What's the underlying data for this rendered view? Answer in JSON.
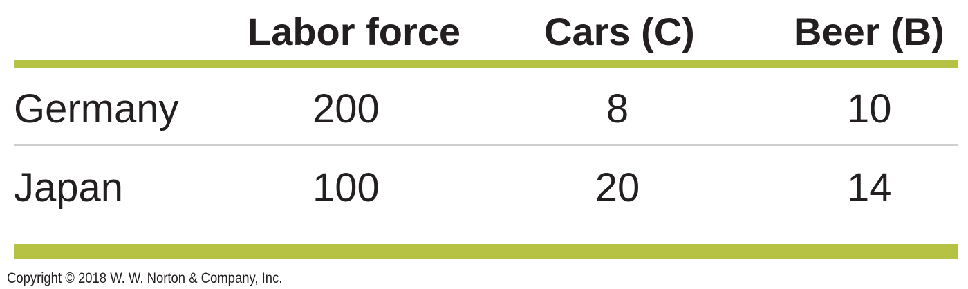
{
  "table": {
    "headers": [
      "Labor force",
      "Cars (C)",
      "Beer (B)"
    ],
    "rows": [
      {
        "country": "Germany",
        "labor_force": "200",
        "cars": "8",
        "beer": "10"
      },
      {
        "country": "Japan",
        "labor_force": "100",
        "cars": "20",
        "beer": "14"
      }
    ],
    "colors": {
      "accent_rule": "#b5c244",
      "divider": "#cfcfcf",
      "text": "#231f20"
    }
  },
  "footer": {
    "copyright": "Copyright © 2018 W. W. Norton & Company, Inc."
  }
}
